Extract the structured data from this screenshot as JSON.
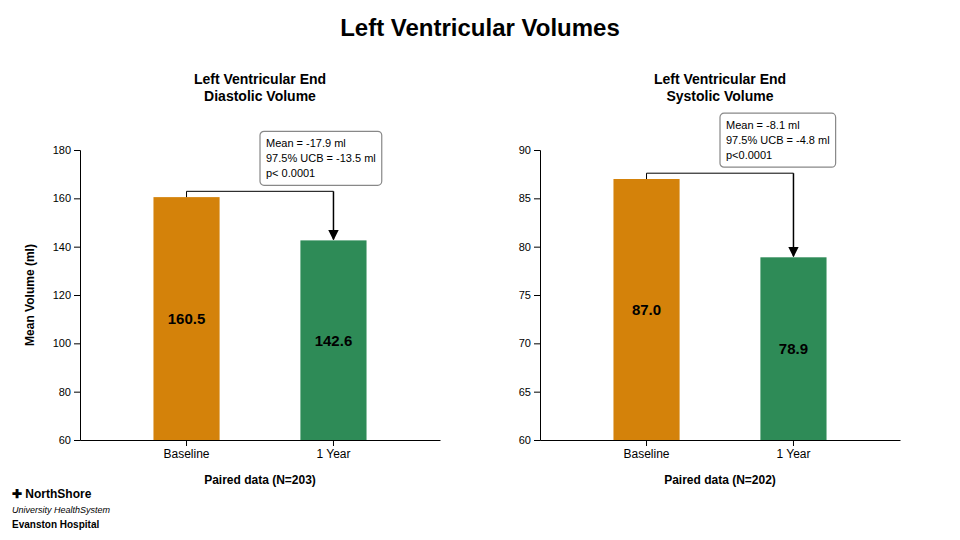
{
  "title": "Left Ventricular Volumes",
  "annotations": [
    "✚ NorthShore",
    "University HealthSystem",
    "Evanston Hospital"
  ],
  "chart_data": [
    {
      "type": "bar",
      "title": "Left Ventricular End\nDiastolic Volume",
      "categories": [
        "Baseline",
        "1 Year"
      ],
      "values": [
        160.5,
        142.6
      ],
      "colors": [
        "#D4820A",
        "#2E8B57"
      ],
      "ylim": [
        60,
        180
      ],
      "yticks": [
        60,
        80,
        100,
        120,
        140,
        160,
        180
      ],
      "ylabel": "Mean Volume (ml)",
      "xlabel": "Paired data (N=203)",
      "annotations": [
        "Mean = -17.9 ml",
        "97.5% UCB = -13.5 ml",
        "p< 0.0001"
      ],
      "data_labels": true
    },
    {
      "type": "bar",
      "title": "Left Ventricular End\nSystolic Volume",
      "categories": [
        "Baseline",
        "1 Year"
      ],
      "values": [
        87.0,
        78.9
      ],
      "value_labels": [
        "87.0",
        "78.9"
      ],
      "colors": [
        "#D4820A",
        "#2E8B57"
      ],
      "ylim": [
        60,
        90
      ],
      "yticks": [
        60,
        65,
        70,
        75,
        80,
        85,
        90
      ],
      "xlabel": "Paired data (N=202)",
      "annotations": [
        "Mean = -8.1 ml",
        "97.5% UCB = -4.8 ml",
        "p<0.0001"
      ],
      "data_labels": true
    }
  ]
}
